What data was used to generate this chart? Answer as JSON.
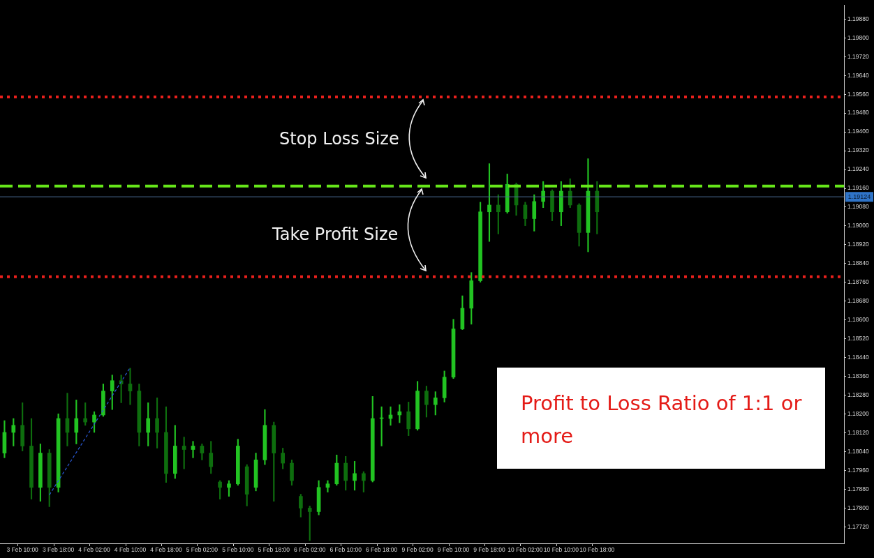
{
  "chart_data": {
    "type": "candlestick",
    "categories": [
      null,
      null,
      "3 Feb 10:00",
      null,
      null,
      null,
      "3 Feb 18:00",
      null,
      null,
      null,
      "4 Feb 02:00",
      null,
      null,
      null,
      "4 Feb 10:00",
      null,
      null,
      null,
      "4 Feb 18:00",
      null,
      null,
      null,
      "5 Feb 02:00",
      null,
      null,
      null,
      "5 Feb 10:00",
      null,
      null,
      null,
      "5 Feb 18:00",
      null,
      null,
      null,
      "6 Feb 02:00",
      null,
      null,
      null,
      "6 Feb 10:00",
      null,
      null,
      null,
      "6 Feb 18:00",
      null,
      null,
      null,
      "9 Feb 02:00",
      null,
      null,
      null,
      "9 Feb 10:00",
      null,
      null,
      null,
      "9 Feb 18:00",
      null,
      null,
      null,
      "10 Feb 02:00",
      null,
      null,
      null,
      "10 Feb 10:00",
      null,
      null,
      null,
      "10 Feb 18:00",
      null,
      null,
      null,
      null,
      null,
      null,
      null,
      null,
      null,
      null,
      null,
      null,
      null,
      null,
      null,
      null,
      null,
      null,
      null,
      null,
      null,
      null,
      null,
      null,
      null,
      null,
      null
    ],
    "colors": [
      "#22c322",
      "#22c322",
      "#0e6e0e",
      "#0e6e0e",
      "#22c322",
      "#0e6e0e",
      "#22c322",
      "#0e6e0e",
      "#22c322",
      "#0e6e0e",
      "#22c322",
      "#22c322",
      "#22c322",
      "#0e6e0e",
      "#0e6e0e",
      "#0e6e0e",
      "#22c322",
      "#0e6e0e",
      "#0e6e0e",
      "#22c322",
      "#0e6e0e",
      "#22c322",
      "#0e6e0e",
      "#0e6e0e",
      "#0e6e0e",
      "#22c322",
      "#22c322",
      "#0e6e0e",
      "#22c322",
      "#22c322",
      "#0e6e0e",
      "#0e6e0e",
      "#0e6e0e",
      "#0e6e0e",
      "#0e6e0e",
      "#22c322",
      "#22c322",
      "#22c322",
      "#0e6e0e",
      "#22c322",
      "#0e6e0e",
      "#22c322",
      "#22c322",
      "#22c322",
      "#22c322",
      "#0e6e0e",
      "#22c322",
      "#0e6e0e",
      "#22c322",
      "#22c322",
      "#22c322",
      "#22c322",
      "#22c322",
      "#22c322",
      "#22c322",
      "#0e6e0e",
      "#22c322",
      "#0e6e0e",
      "#0e6e0e",
      "#22c322",
      "#22c322",
      "#0e6e0e",
      "#22c322",
      "#0e6e0e",
      "#0e6e0e",
      "#22c322",
      "#0e6e0e",
      null,
      null,
      null,
      null,
      null,
      null,
      null,
      null,
      null,
      null,
      null,
      null,
      null,
      null,
      null,
      null,
      null,
      null,
      null,
      null,
      null,
      null,
      null,
      null,
      null,
      null,
      null
    ],
    "ohlc": [
      [
        1.18034,
        1.18172,
        1.18014,
        1.18122
      ],
      [
        1.18122,
        1.18181,
        1.18064,
        1.18152
      ],
      [
        1.18152,
        1.18248,
        1.18043,
        1.18064
      ],
      [
        1.18064,
        1.18181,
        1.17838,
        1.17888
      ],
      [
        1.17888,
        1.18073,
        1.17829,
        1.18034
      ],
      [
        1.18034,
        1.18049,
        1.17806,
        1.17888
      ],
      [
        1.17888,
        1.18201,
        1.17868,
        1.18181
      ],
      [
        1.18181,
        1.18289,
        1.18064,
        1.18122
      ],
      [
        1.18122,
        1.1826,
        1.18073,
        1.18181
      ],
      [
        1.18181,
        1.18248,
        1.18152,
        1.18166
      ],
      [
        1.18166,
        1.1821,
        1.18122,
        1.18196
      ],
      [
        1.18196,
        1.18328,
        1.1819,
        1.18298
      ],
      [
        1.18298,
        1.18366,
        1.18219,
        1.18342
      ],
      [
        1.18342,
        1.18366,
        1.18248,
        1.18328
      ],
      [
        1.18328,
        1.18395,
        1.1824,
        1.18298
      ],
      [
        1.18298,
        1.18328,
        1.18064,
        1.18122
      ],
      [
        1.18122,
        1.18248,
        1.18064,
        1.18181
      ],
      [
        1.18181,
        1.18269,
        1.18055,
        1.18122
      ],
      [
        1.18122,
        1.18231,
        1.17909,
        1.17947
      ],
      [
        1.17947,
        1.18152,
        1.17926,
        1.18064
      ],
      [
        1.18064,
        1.18102,
        1.17967,
        1.18049
      ],
      [
        1.18049,
        1.18084,
        1.18014,
        1.18064
      ],
      [
        1.18064,
        1.18073,
        1.18005,
        1.18034
      ],
      [
        1.18034,
        1.18084,
        1.17947,
        1.17976
      ],
      [
        1.17911,
        1.17917,
        1.17838,
        1.17888
      ],
      [
        1.17888,
        1.17917,
        1.1785,
        1.17903
      ],
      [
        1.17903,
        1.18093,
        1.17897,
        1.18064
      ],
      [
        1.17976,
        1.17985,
        1.17809,
        1.17859
      ],
      [
        1.17888,
        1.18034,
        1.17873,
        1.18005
      ],
      [
        1.18005,
        1.18219,
        1.17985,
        1.18152
      ],
      [
        1.18152,
        1.18166,
        1.17829,
        1.18034
      ],
      [
        1.18034,
        1.18055,
        1.17967,
        1.17991
      ],
      [
        1.17991,
        1.18005,
        1.17897,
        1.17917
      ],
      [
        1.1785,
        1.17859,
        1.17762,
        1.178
      ],
      [
        1.178,
        1.17809,
        1.17662,
        1.17785
      ],
      [
        1.17785,
        1.17917,
        1.17771,
        1.17888
      ],
      [
        1.17888,
        1.17917,
        1.17868,
        1.17903
      ],
      [
        1.17903,
        1.18026,
        1.17897,
        1.17991
      ],
      [
        1.17991,
        1.1802,
        1.17876,
        1.17917
      ],
      [
        1.17917,
        1.17999,
        1.17876,
        1.17947
      ],
      [
        1.17947,
        1.17955,
        1.17868,
        1.17917
      ],
      [
        1.17917,
        1.18275,
        1.17911,
        1.18181
      ],
      [
        1.18181,
        1.18231,
        1.18064,
        1.18181
      ],
      [
        1.18181,
        1.18231,
        1.18152,
        1.18196
      ],
      [
        1.18196,
        1.1824,
        1.18163,
        1.1821
      ],
      [
        1.1821,
        1.18251,
        1.18108,
        1.18137
      ],
      [
        1.18137,
        1.18339,
        1.18131,
        1.18298
      ],
      [
        1.18298,
        1.18319,
        1.18187,
        1.1824
      ],
      [
        1.1824,
        1.18295,
        1.18196,
        1.18269
      ],
      [
        1.18269,
        1.18383,
        1.18251,
        1.18357
      ],
      [
        1.18357,
        1.18603,
        1.18351,
        1.18562
      ],
      [
        1.18562,
        1.18703,
        1.18559,
        1.1865
      ],
      [
        1.1865,
        1.18802,
        1.18582,
        1.18767
      ],
      [
        1.18767,
        1.19101,
        1.18761,
        1.1906
      ],
      [
        1.1906,
        1.19265,
        1.18934,
        1.19089
      ],
      [
        1.19089,
        1.19133,
        1.18966,
        1.1906
      ],
      [
        1.1906,
        1.19221,
        1.19054,
        1.19177
      ],
      [
        1.19177,
        1.19183,
        1.19045,
        1.19089
      ],
      [
        1.19089,
        1.19101,
        1.19001,
        1.19031
      ],
      [
        1.19031,
        1.19133,
        1.18978,
        1.19104
      ],
      [
        1.19104,
        1.19189,
        1.19078,
        1.19148
      ],
      [
        1.19148,
        1.19154,
        1.19022,
        1.1906
      ],
      [
        1.1906,
        1.19189,
        1.19001,
        1.19148
      ],
      [
        1.19148,
        1.19201,
        1.19078,
        1.19089
      ],
      [
        1.19089,
        1.19095,
        1.18914,
        1.18972
      ],
      [
        1.18972,
        1.19286,
        1.1889,
        1.19148
      ],
      [
        1.19148,
        1.19189,
        1.18966,
        1.1906
      ],
      null,
      null,
      null,
      null,
      null,
      null,
      null,
      null,
      null,
      null,
      null,
      null,
      null,
      null,
      null,
      null,
      null,
      null,
      null,
      null,
      null,
      null,
      null,
      null,
      null,
      null,
      null
    ],
    "series": [
      {
        "type": "line",
        "color": "#2a5ad8",
        "line_style": "dashed",
        "values": [
          null,
          null,
          null,
          null,
          null,
          1.17856,
          null,
          null,
          null,
          null,
          null,
          null,
          null,
          null,
          1.18398,
          null,
          null,
          null,
          null,
          null,
          null,
          null,
          null,
          null,
          null,
          null,
          null,
          null,
          null,
          null,
          null,
          null,
          null,
          null,
          null,
          null,
          null,
          null,
          null,
          null,
          null,
          null,
          null,
          null,
          null,
          null,
          null,
          null,
          null,
          null,
          null,
          null,
          null,
          null,
          null,
          null,
          null,
          null,
          null,
          null,
          null,
          null,
          null,
          null,
          null,
          null,
          null,
          null,
          null,
          null,
          null,
          null,
          null,
          null,
          null,
          null,
          null,
          null,
          null,
          null,
          null,
          null,
          null,
          null,
          null,
          null,
          null,
          null,
          null,
          null,
          null,
          null,
          null,
          null
        ]
      }
    ],
    "ylim": [
      1.1765,
      1.1994
    ],
    "yticks": [
      {
        "value": 1.1772,
        "label": "1.17720"
      },
      {
        "value": 1.178,
        "label": "1.17800"
      },
      {
        "value": 1.1788,
        "label": "1.17880"
      },
      {
        "value": 1.1796,
        "label": "1.17960"
      },
      {
        "value": 1.1804,
        "label": "1.18040"
      },
      {
        "value": 1.1812,
        "label": "1.18120"
      },
      {
        "value": 1.182,
        "label": "1.18200"
      },
      {
        "value": 1.1828,
        "label": "1.18280"
      },
      {
        "value": 1.1836,
        "label": "1.18360"
      },
      {
        "value": 1.1844,
        "label": "1.18440"
      },
      {
        "value": 1.1852,
        "label": "1.18520"
      },
      {
        "value": 1.186,
        "label": "1.18600"
      },
      {
        "value": 1.1868,
        "label": "1.18680"
      },
      {
        "value": 1.1876,
        "label": "1.18760"
      },
      {
        "value": 1.1884,
        "label": "1.18840"
      },
      {
        "value": 1.1892,
        "label": "1.18920"
      },
      {
        "value": 1.19,
        "label": "1.19000"
      },
      {
        "value": 1.1908,
        "label": "1.19080"
      },
      {
        "value": 1.1916,
        "label": "1.19160"
      },
      {
        "value": 1.1924,
        "label": "1.19240"
      },
      {
        "value": 1.1932,
        "label": "1.19320"
      },
      {
        "value": 1.194,
        "label": "1.19400"
      },
      {
        "value": 1.1948,
        "label": "1.19480"
      },
      {
        "value": 1.1956,
        "label": "1.19560"
      },
      {
        "value": 1.1964,
        "label": "1.19640"
      },
      {
        "value": 1.1972,
        "label": "1.19720"
      },
      {
        "value": 1.198,
        "label": "1.19800"
      },
      {
        "value": 1.1988,
        "label": "1.19880"
      }
    ],
    "ref_lines": [
      {
        "axis": "y",
        "value": 1.19549,
        "color": "#e8201c",
        "line_style": "dotted"
      },
      {
        "axis": "y",
        "value": 1.1917,
        "color": "#66e61a",
        "line_style": "dashed"
      },
      {
        "axis": "y",
        "value": 1.19124,
        "label": "1.19124",
        "color": "#4b6a96",
        "line_style": "solid"
      },
      {
        "axis": "y",
        "value": 1.18784,
        "color": "#e8201c",
        "line_style": "dotted"
      }
    ],
    "annotations": [
      "Stop Loss Size",
      "Take Profit Size",
      "Profit to Loss Ratio of 1:1 or more"
    ],
    "grid": false,
    "legend": false
  }
}
